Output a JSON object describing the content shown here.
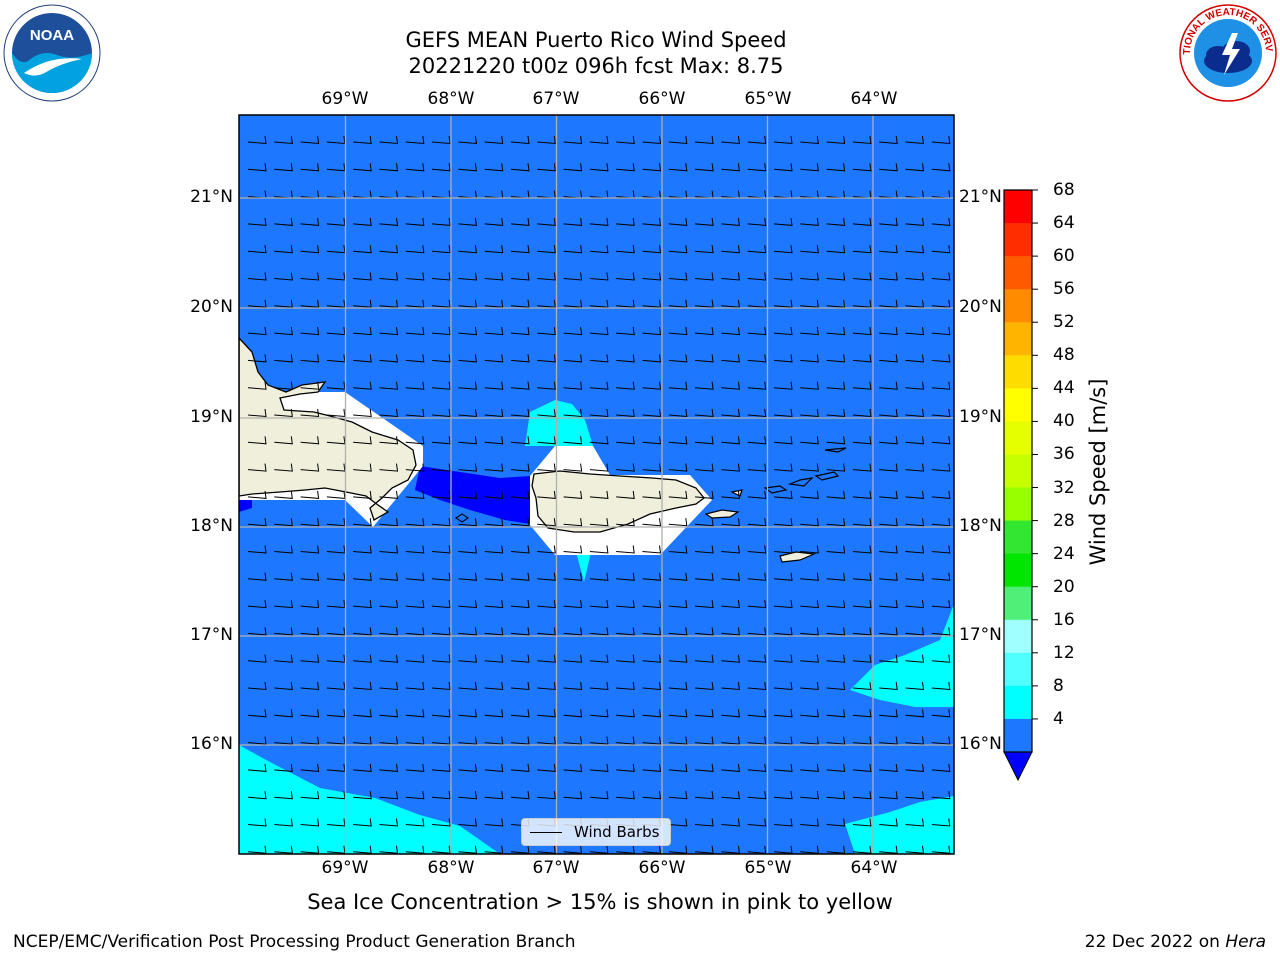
{
  "title": {
    "line1": "GEFS MEAN Puerto Rico Wind Speed",
    "line2": "20221220 t00z 096h fcst   Max: 8.75"
  },
  "map": {
    "lon_labels": [
      "69°W",
      "68°W",
      "67°W",
      "66°W",
      "65°W",
      "64°W"
    ],
    "lat_labels": [
      "21°N",
      "20°N",
      "19°N",
      "18°N",
      "17°N",
      "16°N"
    ],
    "legend_label": "Wind Barbs",
    "ocean_color": "#1e78ff",
    "light_wind_color": "#00ffff",
    "weak_wind_color": "#0000ff",
    "land_color": "#efefdb"
  },
  "colorbar": {
    "title": "Wind Speed [m/s]",
    "ticks": [
      "68",
      "64",
      "60",
      "56",
      "52",
      "48",
      "44",
      "40",
      "36",
      "32",
      "28",
      "24",
      "20",
      "16",
      "12",
      "8",
      "4"
    ],
    "colors": [
      "#ff0000",
      "#ff2d00",
      "#ff5a00",
      "#ff8c00",
      "#ffb400",
      "#ffdc00",
      "#ffff00",
      "#e6ff00",
      "#c8ff00",
      "#96ff00",
      "#32e632",
      "#00e600",
      "#50f078",
      "#a0ffff",
      "#50ffff",
      "#00ffff",
      "#1e78ff"
    ],
    "under_color": "#0000ff"
  },
  "note": "Sea Ice Concentration > 15% is shown in pink to yellow",
  "footer": {
    "left": "NCEP/EMC/Verification Post Processing Product Generation Branch",
    "date": "22 Dec 2022 on ",
    "host": "Hera"
  },
  "logos": {
    "left_text": "NOAA",
    "right_text": "NATIONAL WEATHER SERVICE"
  }
}
